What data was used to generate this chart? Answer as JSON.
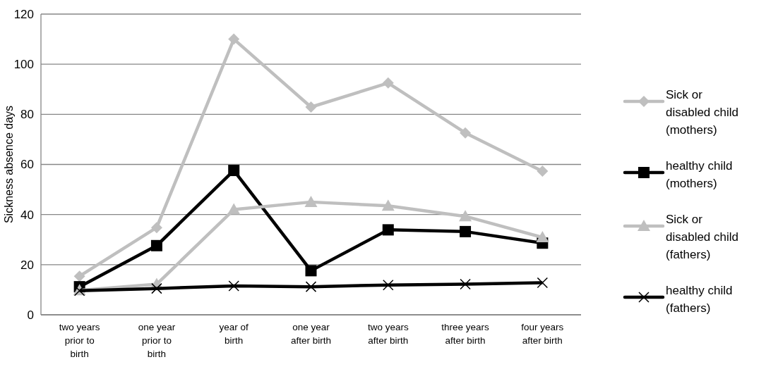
{
  "chart_data": {
    "type": "line",
    "ylabel": "Sickness absence days",
    "categories": [
      "two years prior to birth",
      "one year prior to birth",
      "year of birth",
      "one year after birth",
      "two years after birth",
      "three years after birth",
      "four years after birth"
    ],
    "series": [
      {
        "name": "Sick or disabled child (mothers)",
        "color": "#bfbfbf",
        "marker": "diamond",
        "values": [
          15.4,
          34.8,
          110,
          82.9,
          92.5,
          72.6,
          57.3
        ]
      },
      {
        "name": "healthy child (mothers)",
        "color": "#000000",
        "marker": "square",
        "values": [
          11.2,
          27.6,
          57.6,
          17.6,
          33.9,
          33.2,
          28.6
        ]
      },
      {
        "name": "Sick or disabled child (fathers)",
        "color": "#bfbfbf",
        "marker": "triangle",
        "values": [
          9.8,
          12.2,
          42,
          45,
          43.5,
          39.3,
          30.9
        ]
      },
      {
        "name": "healthy child (fathers)",
        "color": "#000000",
        "marker": "cross",
        "values": [
          9.6,
          10.5,
          11.5,
          11.2,
          11.9,
          12.2,
          12.8
        ]
      }
    ],
    "ylim": [
      0,
      120
    ],
    "yticks": [
      0,
      20,
      40,
      60,
      80,
      100,
      120
    ],
    "grid": "y",
    "legend": "right",
    "line_style": "solid"
  }
}
